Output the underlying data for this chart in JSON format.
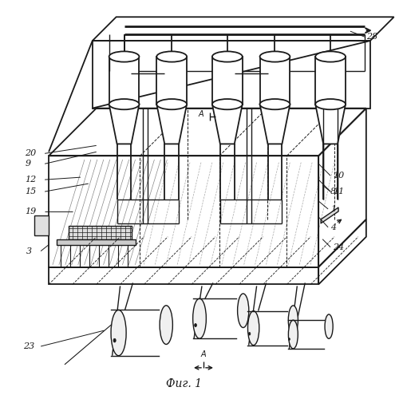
{
  "title": "Фиг. 1",
  "bg_color": "#ffffff",
  "lc": "#1a1a1a",
  "lw": 1.0,
  "figsize": [
    5.06,
    5.0
  ],
  "dpi": 100
}
